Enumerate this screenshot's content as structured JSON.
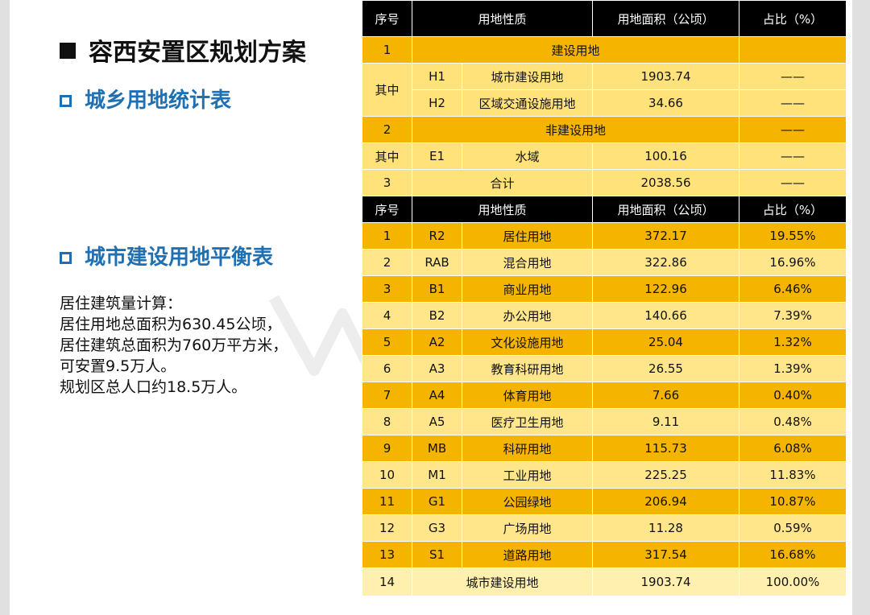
{
  "title": "容西安置区规划方案",
  "section1": "城乡用地统计表",
  "section2": "城市建设用地平衡表",
  "notes": [
    "居住建筑量计算：",
    "居住用地总面积为630.45公顷，",
    "居住建筑总面积为760万平方米，",
    "可安置9.5万人。",
    "规划区总人口约18.5万人。"
  ],
  "headers": [
    "序号",
    "用地性质",
    "用地面积（公顷）",
    "占比（%）"
  ],
  "table1": {
    "r1": {
      "no": "1",
      "name": "建设用地",
      "pct": ""
    },
    "r2": {
      "group": "其中",
      "code": "H1",
      "name": "城市建设用地",
      "area": "1903.74",
      "pct": "——"
    },
    "r3": {
      "code": "H2",
      "name": "区域交通设施用地",
      "area": "34.66",
      "pct": "——"
    },
    "r4": {
      "no": "2",
      "name": "非建设用地",
      "pct": "——"
    },
    "r5": {
      "group": "其中",
      "code": "E1",
      "name": "水域",
      "area": "100.16",
      "pct": "——"
    },
    "r6": {
      "no": "3",
      "name": "合计",
      "area": "2038.56",
      "pct": "——"
    }
  },
  "table2": [
    {
      "no": "1",
      "code": "R2",
      "name": "居住用地",
      "area": "372.17",
      "pct": "19.55%"
    },
    {
      "no": "2",
      "code": "RAB",
      "name": "混合用地",
      "area": "322.86",
      "pct": "16.96%"
    },
    {
      "no": "3",
      "code": "B1",
      "name": "商业用地",
      "area": "122.96",
      "pct": "6.46%"
    },
    {
      "no": "4",
      "code": "B2",
      "name": "办公用地",
      "area": "140.66",
      "pct": "7.39%"
    },
    {
      "no": "5",
      "code": "A2",
      "name": "文化设施用地",
      "area": "25.04",
      "pct": "1.32%"
    },
    {
      "no": "6",
      "code": "A3",
      "name": "教育科研用地",
      "area": "26.55",
      "pct": "1.39%"
    },
    {
      "no": "7",
      "code": "A4",
      "name": "体育用地",
      "area": "7.66",
      "pct": "0.40%"
    },
    {
      "no": "8",
      "code": "A5",
      "name": "医疗卫生用地",
      "area": "9.11",
      "pct": "0.48%"
    },
    {
      "no": "9",
      "code": "MB",
      "name": "科研用地",
      "area": "115.73",
      "pct": "6.08%"
    },
    {
      "no": "10",
      "code": "M1",
      "name": "工业用地",
      "area": "225.25",
      "pct": "11.83%"
    },
    {
      "no": "11",
      "code": "G1",
      "name": "公园绿地",
      "area": "206.94",
      "pct": "10.87%"
    },
    {
      "no": "12",
      "code": "G3",
      "name": "广场用地",
      "area": "11.28",
      "pct": "0.59%"
    },
    {
      "no": "13",
      "code": "S1",
      "name": "道路用地",
      "area": "317.54",
      "pct": "16.68%"
    }
  ],
  "total2": {
    "no": "14",
    "name": "城市建设用地",
    "area": "1903.74",
    "pct": "100.00%"
  },
  "colors": {
    "dark": "#f4b400",
    "light": "#ffe37a",
    "header": "#000000",
    "accent": "#1f6fb3"
  }
}
